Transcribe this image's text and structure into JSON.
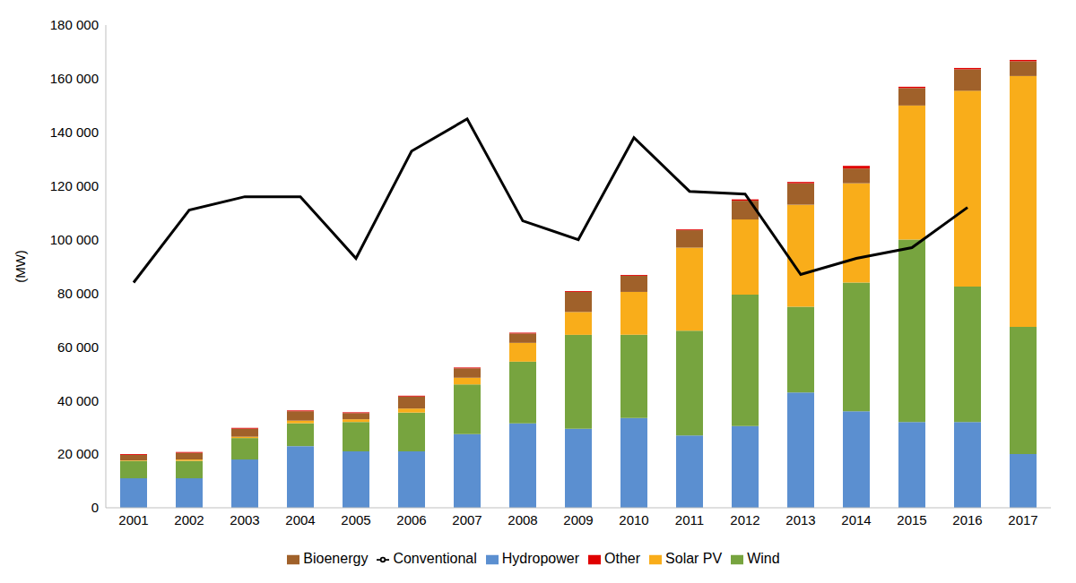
{
  "chart_data": {
    "type": "bar",
    "stacked": true,
    "grid": false,
    "legend": "bottom",
    "y_label": "(MW)",
    "categories": [
      "2001",
      "2002",
      "2003",
      "2004",
      "2005",
      "2006",
      "2007",
      "2008",
      "2009",
      "2010",
      "2011",
      "2012",
      "2013",
      "2014",
      "2015",
      "2016",
      "2017"
    ],
    "ylim": [
      0,
      180000
    ],
    "yticks": [
      {
        "value": 0,
        "label": "0"
      },
      {
        "value": 20000,
        "label": "20 000"
      },
      {
        "value": 40000,
        "label": "40 000"
      },
      {
        "value": 60000,
        "label": "60 000"
      },
      {
        "value": 80000,
        "label": "80 000"
      },
      {
        "value": 100000,
        "label": "100 000"
      },
      {
        "value": 120000,
        "label": "120 000"
      },
      {
        "value": 140000,
        "label": "140 000"
      },
      {
        "value": 160000,
        "label": "160 000"
      },
      {
        "value": 180000,
        "label": "180 000"
      }
    ],
    "series": [
      {
        "name": "Hydropower",
        "type": "bar",
        "color": "#5b8fd0",
        "values": [
          11000,
          11000,
          18000,
          23000,
          21000,
          21000,
          27500,
          31500,
          29500,
          33500,
          27000,
          30500,
          43000,
          36000,
          32000,
          32000,
          20000
        ]
      },
      {
        "name": "Wind",
        "type": "bar",
        "color": "#77a43f",
        "values": [
          6500,
          6500,
          8000,
          8500,
          11000,
          14500,
          18500,
          23000,
          35000,
          31000,
          39000,
          49000,
          32000,
          48000,
          68000,
          50500,
          47500
        ]
      },
      {
        "name": "Solar PV",
        "type": "bar",
        "color": "#f9ad1a",
        "values": [
          200,
          500,
          500,
          1000,
          1000,
          1500,
          2500,
          7000,
          8500,
          16000,
          31000,
          28000,
          38000,
          37000,
          50000,
          73000,
          93500
        ]
      },
      {
        "name": "Bioenergy",
        "type": "bar",
        "color": "#a0612a",
        "values": [
          2000,
          2500,
          3000,
          3500,
          2300,
          4500,
          3500,
          3500,
          7500,
          6000,
          6500,
          7000,
          8000,
          5500,
          6500,
          8000,
          5500
        ]
      },
      {
        "name": "Other",
        "type": "bar",
        "color": "#e00000",
        "values": [
          300,
          300,
          300,
          300,
          300,
          300,
          300,
          300,
          300,
          300,
          300,
          500,
          500,
          1000,
          500,
          500,
          500
        ]
      },
      {
        "name": "Conventional",
        "type": "line",
        "color": "#000000",
        "values": [
          84000,
          111000,
          116000,
          116000,
          93000,
          133000,
          145000,
          107000,
          100000,
          138000,
          118000,
          117000,
          87000,
          93000,
          97000,
          112000,
          null
        ]
      }
    ]
  }
}
